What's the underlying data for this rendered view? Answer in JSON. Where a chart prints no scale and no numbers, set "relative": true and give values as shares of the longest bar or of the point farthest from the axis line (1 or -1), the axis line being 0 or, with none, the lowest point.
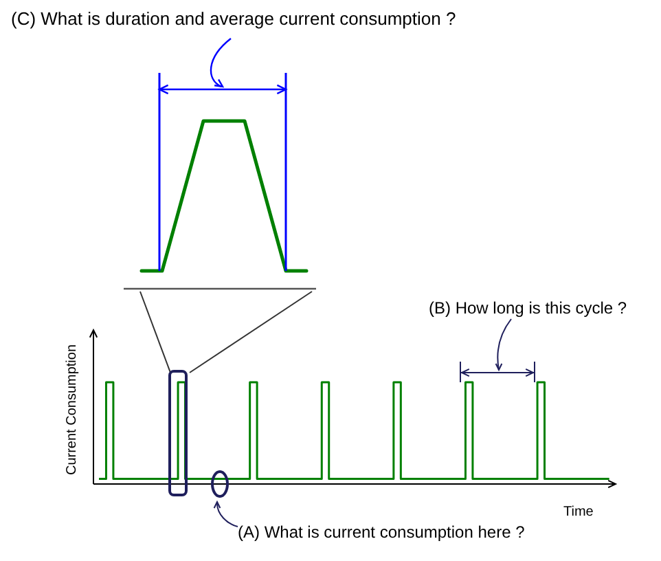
{
  "chart_data": [
    {
      "type": "line",
      "relative": true,
      "annotations": [
        "(C) What is duration and average current consumption ?"
      ],
      "categories": [
        null,
        null,
        null,
        null,
        null,
        null,
        null,
        null,
        null
      ],
      "series": [
        {
          "color": "#008000",
          "values": [
            0,
            0,
            0.5,
            1,
            1,
            1,
            0.5,
            0,
            0
          ]
        }
      ]
    },
    {
      "type": "step",
      "relative": true,
      "xlabel": "Time",
      "ylabel": "Current Consumption",
      "annotations": [
        "(B) How long is this cycle ?",
        "(A) What is current consumption here ?"
      ],
      "categories": [
        null,
        null,
        null,
        null,
        null,
        null,
        null,
        null,
        null,
        null,
        null,
        null,
        null,
        null,
        null,
        null,
        null,
        null,
        null,
        null,
        null,
        null,
        null,
        null,
        null,
        null,
        null,
        null,
        null,
        null,
        null,
        null,
        null,
        null,
        null,
        null,
        null,
        null,
        null,
        null,
        null,
        null,
        null,
        null,
        null,
        null,
        null,
        null,
        null,
        null,
        null,
        null,
        null,
        null,
        null,
        null,
        null,
        null,
        null,
        null,
        null,
        null,
        null,
        null,
        null,
        null,
        null,
        null,
        null,
        null,
        null,
        null
      ],
      "series": [
        {
          "color": "#008000",
          "values": [
            0.05,
            1,
            0.05,
            0.05,
            0.05,
            0.05,
            0.05,
            0.05,
            0.05,
            0.05,
            0.05,
            1,
            0.05,
            0.05,
            0.05,
            0.05,
            0.05,
            0.05,
            0.05,
            0.05,
            0.05,
            1,
            0.05,
            0.05,
            0.05,
            0.05,
            0.05,
            0.05,
            0.05,
            0.05,
            0.05,
            1,
            0.05,
            0.05,
            0.05,
            0.05,
            0.05,
            0.05,
            0.05,
            0.05,
            0.05,
            1,
            0.05,
            0.05,
            0.05,
            0.05,
            0.05,
            0.05,
            0.05,
            0.05,
            0.05,
            1,
            0.05,
            0.05,
            0.05,
            0.05,
            0.05,
            0.05,
            0.05,
            0.05,
            0.05,
            1,
            0.05,
            0.05,
            0.05,
            0.05,
            0.05,
            0.05,
            0.05,
            0.05,
            0.05,
            0.05
          ]
        }
      ]
    }
  ]
}
